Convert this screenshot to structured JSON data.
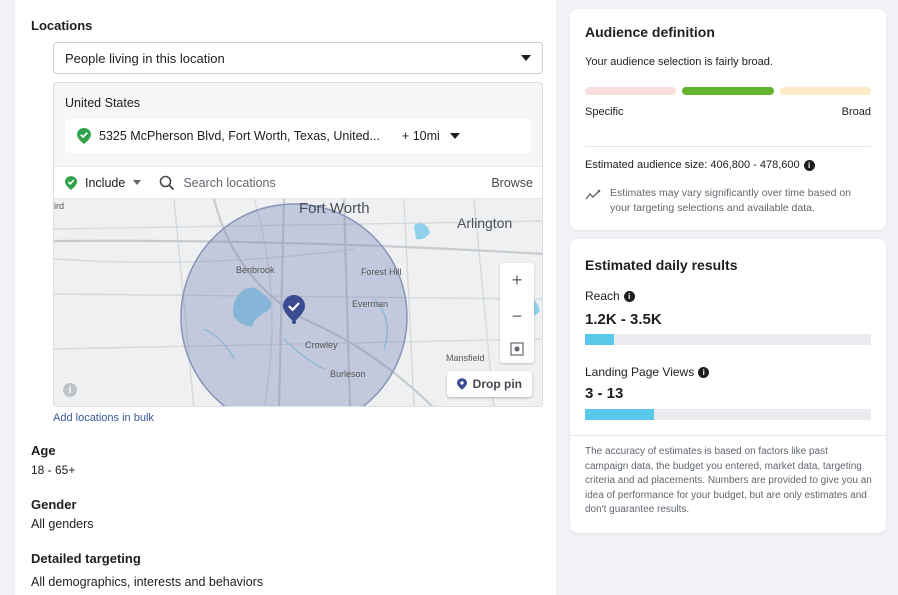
{
  "left": {
    "locations_title": "Locations",
    "location_type": "People living in this location",
    "country": "United States",
    "address": "5325 McPherson Blvd, Fort Worth, Texas, United...",
    "radius": "+ 10mi",
    "include_label": "Include",
    "search_placeholder": "Search locations",
    "browse_label": "Browse",
    "drop_pin_label": "Drop pin",
    "add_bulk_link": "Add locations in bulk",
    "map_labels": {
      "fort_worth": "Fort Worth",
      "arlington": "Arlington",
      "benbrook": "Benbrook",
      "forest_hill": "Forest Hill",
      "everman": "Everman",
      "crowley": "Crowley",
      "burleson": "Burleson",
      "mansfield": "Mansfield",
      "edge_ird": "ird"
    },
    "age_title": "Age",
    "age_value": "18 - 65+",
    "gender_title": "Gender",
    "gender_value": "All genders",
    "detailed_title": "Detailed targeting",
    "detailed_value": "All demographics, interests and behaviors"
  },
  "audience": {
    "title": "Audience definition",
    "summary": "Your audience selection is fairly broad.",
    "specific_label": "Specific",
    "broad_label": "Broad",
    "size_label": "Estimated audience size: 406,800 - 478,600",
    "note": "Estimates may vary significantly over time based on your targeting selections and available data.",
    "meter_position": "middle",
    "colors": {
      "specific": "#f9dede",
      "middle": "#63b32e",
      "broad": "#fdebc8"
    }
  },
  "results": {
    "title": "Estimated daily results",
    "reach_label": "Reach",
    "reach_value": "1.2K - 3.5K",
    "reach_fill": 0.1,
    "lpv_label": "Landing Page Views",
    "lpv_value": "3 - 13",
    "lpv_fill": 0.24,
    "disclaimer": "The accuracy of estimates is based on factors like past campaign data, the budget you entered, market data, targeting criteria and ad placements. Numbers are provided to give you an idea of performance for your budget, but are only estimates and don't guarantee results.",
    "bar_color": "#5ac8e8"
  }
}
